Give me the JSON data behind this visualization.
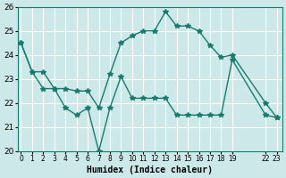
{
  "xlabel": "Humidex (Indice chaleur)",
  "bg_color": "#cce8e8",
  "grid_color": "#ffffff",
  "line_color": "#1a7a6e",
  "ylim": [
    20,
    26
  ],
  "yticks": [
    20,
    21,
    22,
    23,
    24,
    25,
    26
  ],
  "xtick_positions": [
    0,
    1,
    2,
    3,
    4,
    5,
    6,
    7,
    8,
    9,
    10,
    11,
    12,
    13,
    14,
    15,
    16,
    17,
    18,
    19,
    22,
    23
  ],
  "xtick_labels": [
    "0",
    "1",
    "2",
    "3",
    "4",
    "5",
    "6",
    "7",
    "8",
    "9",
    "10",
    "11",
    "12",
    "13",
    "14",
    "15",
    "16",
    "17",
    "18",
    "19",
    "22",
    "23"
  ],
  "xlim": [
    -0.3,
    23.5
  ],
  "series": [
    {
      "x": [
        0,
        1,
        2,
        3,
        4,
        5,
        6,
        7,
        8,
        9,
        10,
        11,
        12,
        13,
        14,
        15,
        16,
        17,
        18,
        19,
        22,
        23
      ],
      "y": [
        24.5,
        23.3,
        23.3,
        22.6,
        22.6,
        22.5,
        22.5,
        21.8,
        23.2,
        24.5,
        24.8,
        25.0,
        25.0,
        25.8,
        25.2,
        25.2,
        25.0,
        24.4,
        23.9,
        24.0,
        22.0,
        21.4
      ]
    },
    {
      "x": [
        0,
        1,
        2,
        3,
        4,
        5,
        6,
        7,
        8,
        9,
        10,
        11,
        12,
        13,
        14,
        15,
        16,
        17,
        18,
        19,
        22,
        23
      ],
      "y": [
        24.5,
        23.3,
        22.6,
        22.6,
        21.8,
        21.5,
        21.8,
        20.0,
        21.8,
        23.1,
        22.2,
        22.2,
        22.2,
        22.2,
        21.5,
        21.5,
        21.5,
        21.5,
        21.5,
        23.8,
        21.5,
        21.4
      ]
    }
  ]
}
